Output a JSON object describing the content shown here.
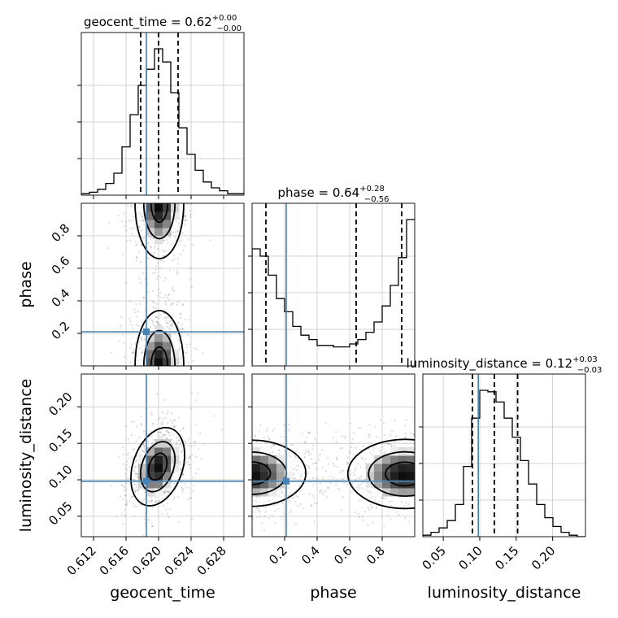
{
  "chart_data": {
    "type": "corner",
    "parameters": [
      "geocent_time",
      "phase",
      "luminosity_distance"
    ],
    "axis_labels": {
      "geocent_time": "geocent_time",
      "phase": "phase",
      "luminosity_distance": "luminosity_distance"
    },
    "titles": [
      {
        "param": "geocent_time",
        "text": "geocent_time = 0.62",
        "plus": "+0.00",
        "minus": "−0.00"
      },
      {
        "param": "phase",
        "text": "phase = 0.64",
        "plus": "+0.28",
        "minus": "−0.56"
      },
      {
        "param": "luminosity_distance",
        "text": "luminosity_distance = 0.12",
        "plus": "+0.03",
        "minus": "−0.03"
      }
    ],
    "ranges": {
      "geocent_time": [
        0.6105,
        0.6305
      ],
      "phase": [
        0.0,
        1.0
      ],
      "luminosity_distance": [
        0.022,
        0.245
      ]
    },
    "ticks": {
      "geocent_time": [
        {
          "v": 0.612,
          "label": "0.612"
        },
        {
          "v": 0.616,
          "label": "0.616"
        },
        {
          "v": 0.62,
          "label": "0.620"
        },
        {
          "v": 0.624,
          "label": "0.624"
        },
        {
          "v": 0.628,
          "label": "0.628"
        }
      ],
      "phase": [
        {
          "v": 0.2,
          "label": "0.2"
        },
        {
          "v": 0.4,
          "label": "0.4"
        },
        {
          "v": 0.6,
          "label": "0.6"
        },
        {
          "v": 0.8,
          "label": "0.8"
        }
      ],
      "luminosity_distance": [
        {
          "v": 0.05,
          "label": "0.05"
        },
        {
          "v": 0.1,
          "label": "0.10"
        },
        {
          "v": 0.15,
          "label": "0.15"
        },
        {
          "v": 0.2,
          "label": "0.20"
        }
      ]
    },
    "truths": {
      "geocent_time": 0.6185,
      "phase": 0.21,
      "luminosity_distance": 0.098
    },
    "quantiles": {
      "geocent_time": [
        0.6178,
        0.62,
        0.6224
      ],
      "phase": [
        0.085,
        0.64,
        0.92
      ],
      "luminosity_distance": [
        0.09,
        0.12,
        0.152
      ]
    },
    "histograms": {
      "geocent_time": [
        1,
        2,
        4,
        8,
        15,
        33,
        55,
        75,
        86,
        100,
        91,
        70,
        46,
        28,
        17,
        9,
        5,
        3,
        1,
        1
      ],
      "phase": [
        80,
        75,
        62,
        46,
        37,
        27,
        21,
        18,
        14,
        14,
        13,
        13,
        15,
        18,
        23,
        30,
        41,
        55,
        74,
        100
      ],
      "luminosity_distance": [
        1,
        3,
        6,
        11,
        22,
        48,
        81,
        100,
        99,
        92,
        81,
        68,
        52,
        36,
        22,
        13,
        7,
        3,
        1,
        0
      ]
    },
    "contours": [
      {
        "x": "geocent_time",
        "y": "phase",
        "blobs": [
          {
            "cx": 0.6201,
            "cy": 1.0,
            "sx": 0.00145,
            "sy": 0.165,
            "rho": 0.0
          },
          {
            "cx": 0.6201,
            "cy": 0.0,
            "sx": 0.00145,
            "sy": 0.165,
            "rho": 0.0
          }
        ]
      },
      {
        "x": "phase",
        "y": "luminosity_distance",
        "blobs": [
          {
            "cx": 0.0,
            "cy": 0.109,
            "sx": 0.16,
            "sy": 0.022,
            "rho": 0.0
          },
          {
            "cx": 0.94,
            "cy": 0.108,
            "sx": 0.17,
            "sy": 0.023,
            "rho": 0.0
          }
        ]
      },
      {
        "x": "geocent_time",
        "y": "luminosity_distance",
        "blobs": [
          {
            "cx": 0.6199,
            "cy": 0.118,
            "sx": 0.0016,
            "sy": 0.026,
            "rho": 0.3
          }
        ]
      }
    ],
    "contour_levels": [
      0.12,
      0.42,
      0.78
    ],
    "colors": {
      "truth": "#4682b4",
      "hist": "#000000",
      "grid": "#c8c8c8"
    }
  }
}
